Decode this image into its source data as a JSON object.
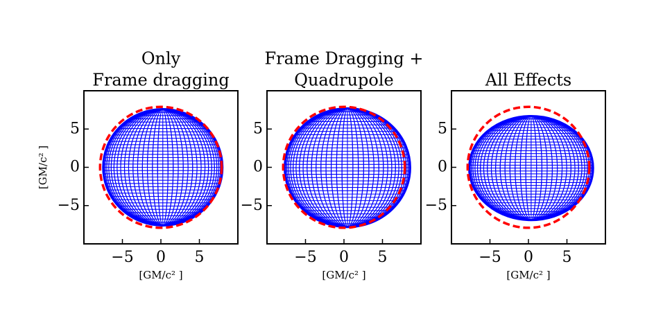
{
  "chart_data": [
    {
      "type": "shadow",
      "title": [
        "Only",
        "Frame dragging"
      ],
      "xlabel": "[GM/c² ]",
      "ylabel": "[GM/c² ]",
      "xlim": [
        -10,
        10
      ],
      "ylim": [
        -10,
        10
      ],
      "xticks": [
        {
          "value": -5,
          "label": "−5"
        },
        0,
        5
      ],
      "yticks": [
        {
          "value": -5,
          "label": "−5"
        },
        0,
        5
      ],
      "shadow": {
        "xmin": -7.5,
        "xmax": 8.0,
        "ymin": -7.6,
        "ymax": 7.6,
        "color": "#0000ff"
      },
      "circle": {
        "radius": 7.9,
        "color": "#ff0000"
      }
    },
    {
      "type": "shadow",
      "title": [
        "Frame Dragging +",
        "Quadrupole"
      ],
      "xlabel": "[GM/c² ]",
      "xlim": [
        -10,
        10
      ],
      "ylim": [
        -10,
        10
      ],
      "xticks": [
        {
          "value": -5,
          "label": "−5"
        },
        0,
        5
      ],
      "yticks": [
        {
          "value": -5,
          "label": "−5"
        },
        0,
        5
      ],
      "shadow": {
        "xmin": -7.7,
        "xmax": 8.6,
        "ymin": -7.8,
        "ymax": 7.7,
        "color": "#0000ff"
      },
      "circle": {
        "radius": 7.9,
        "color": "#ff0000"
      }
    },
    {
      "type": "shadow",
      "title": [
        "All Effects"
      ],
      "xlabel": "[GM/c² ]",
      "xlim": [
        -10,
        10
      ],
      "ylim": [
        -10,
        10
      ],
      "xticks": [
        {
          "value": -5,
          "label": "−5"
        },
        0,
        5
      ],
      "yticks": [
        {
          "value": -5,
          "label": "−5"
        },
        0,
        5
      ],
      "shadow": {
        "xmin": -7.7,
        "xmax": 8.4,
        "ymin": -6.9,
        "ymax": 6.7,
        "color": "#0000ff"
      },
      "circle": {
        "radius": 7.9,
        "color": "#ff0000"
      }
    }
  ]
}
